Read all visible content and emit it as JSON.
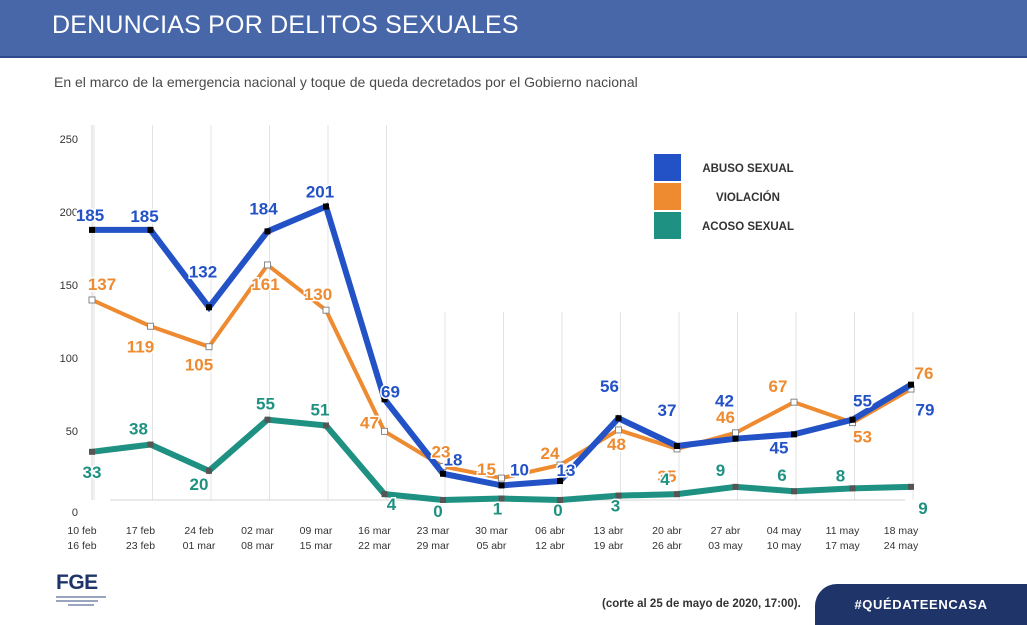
{
  "header": {
    "title": "DENUNCIAS POR DELITOS SEXUALES"
  },
  "subtitle": "En el marco de la emergencia nacional y toque de queda decretados por el Gobierno nacional",
  "footnote": "(corte al 25 de mayo de 2020, 17:00).",
  "hashtag": "#QUÉDATEENCASA",
  "logo": {
    "text": "FGE"
  },
  "chart_data": {
    "type": "line",
    "title": "DENUNCIAS POR DELITOS SEXUALES",
    "xlabel": "",
    "ylabel": "",
    "ylim": [
      0,
      250
    ],
    "yticks": [
      "0",
      "50",
      "100",
      "150",
      "200",
      "250"
    ],
    "categories": [
      [
        "10 feb",
        "16 feb"
      ],
      [
        "17 feb",
        "23 feb"
      ],
      [
        "24 feb",
        "01 mar"
      ],
      [
        "02 mar",
        "08 mar"
      ],
      [
        "09 mar",
        "15 mar"
      ],
      [
        "16 mar",
        "22 mar"
      ],
      [
        "23 mar",
        "29 mar"
      ],
      [
        "30 mar",
        "05 abr"
      ],
      [
        "06 abr",
        "12 abr"
      ],
      [
        "13 abr",
        "19 abr"
      ],
      [
        "20 abr",
        "26 abr"
      ],
      [
        "27 abr",
        "03 may"
      ],
      [
        "04 may",
        "10 may"
      ],
      [
        "11 may",
        "17 may"
      ],
      [
        "18 may",
        "24 may"
      ]
    ],
    "series": [
      {
        "name": "ABUSO SEXUAL",
        "color": "#2352c6",
        "values": [
          185,
          185,
          132,
          184,
          201,
          69,
          18,
          10,
          13,
          56,
          37,
          42,
          45,
          55,
          79
        ]
      },
      {
        "name": "VIOLACIÓN",
        "color": "#ee8a2f",
        "values": [
          137,
          119,
          105,
          161,
          130,
          47,
          23,
          15,
          24,
          48,
          35,
          46,
          67,
          53,
          76
        ]
      },
      {
        "name": "ACOSO SEXUAL",
        "color": "#1e9182",
        "values": [
          33,
          38,
          20,
          55,
          51,
          4,
          0,
          1,
          0,
          3,
          4,
          9,
          6,
          8,
          9
        ]
      }
    ],
    "legend_position": "top-right"
  }
}
